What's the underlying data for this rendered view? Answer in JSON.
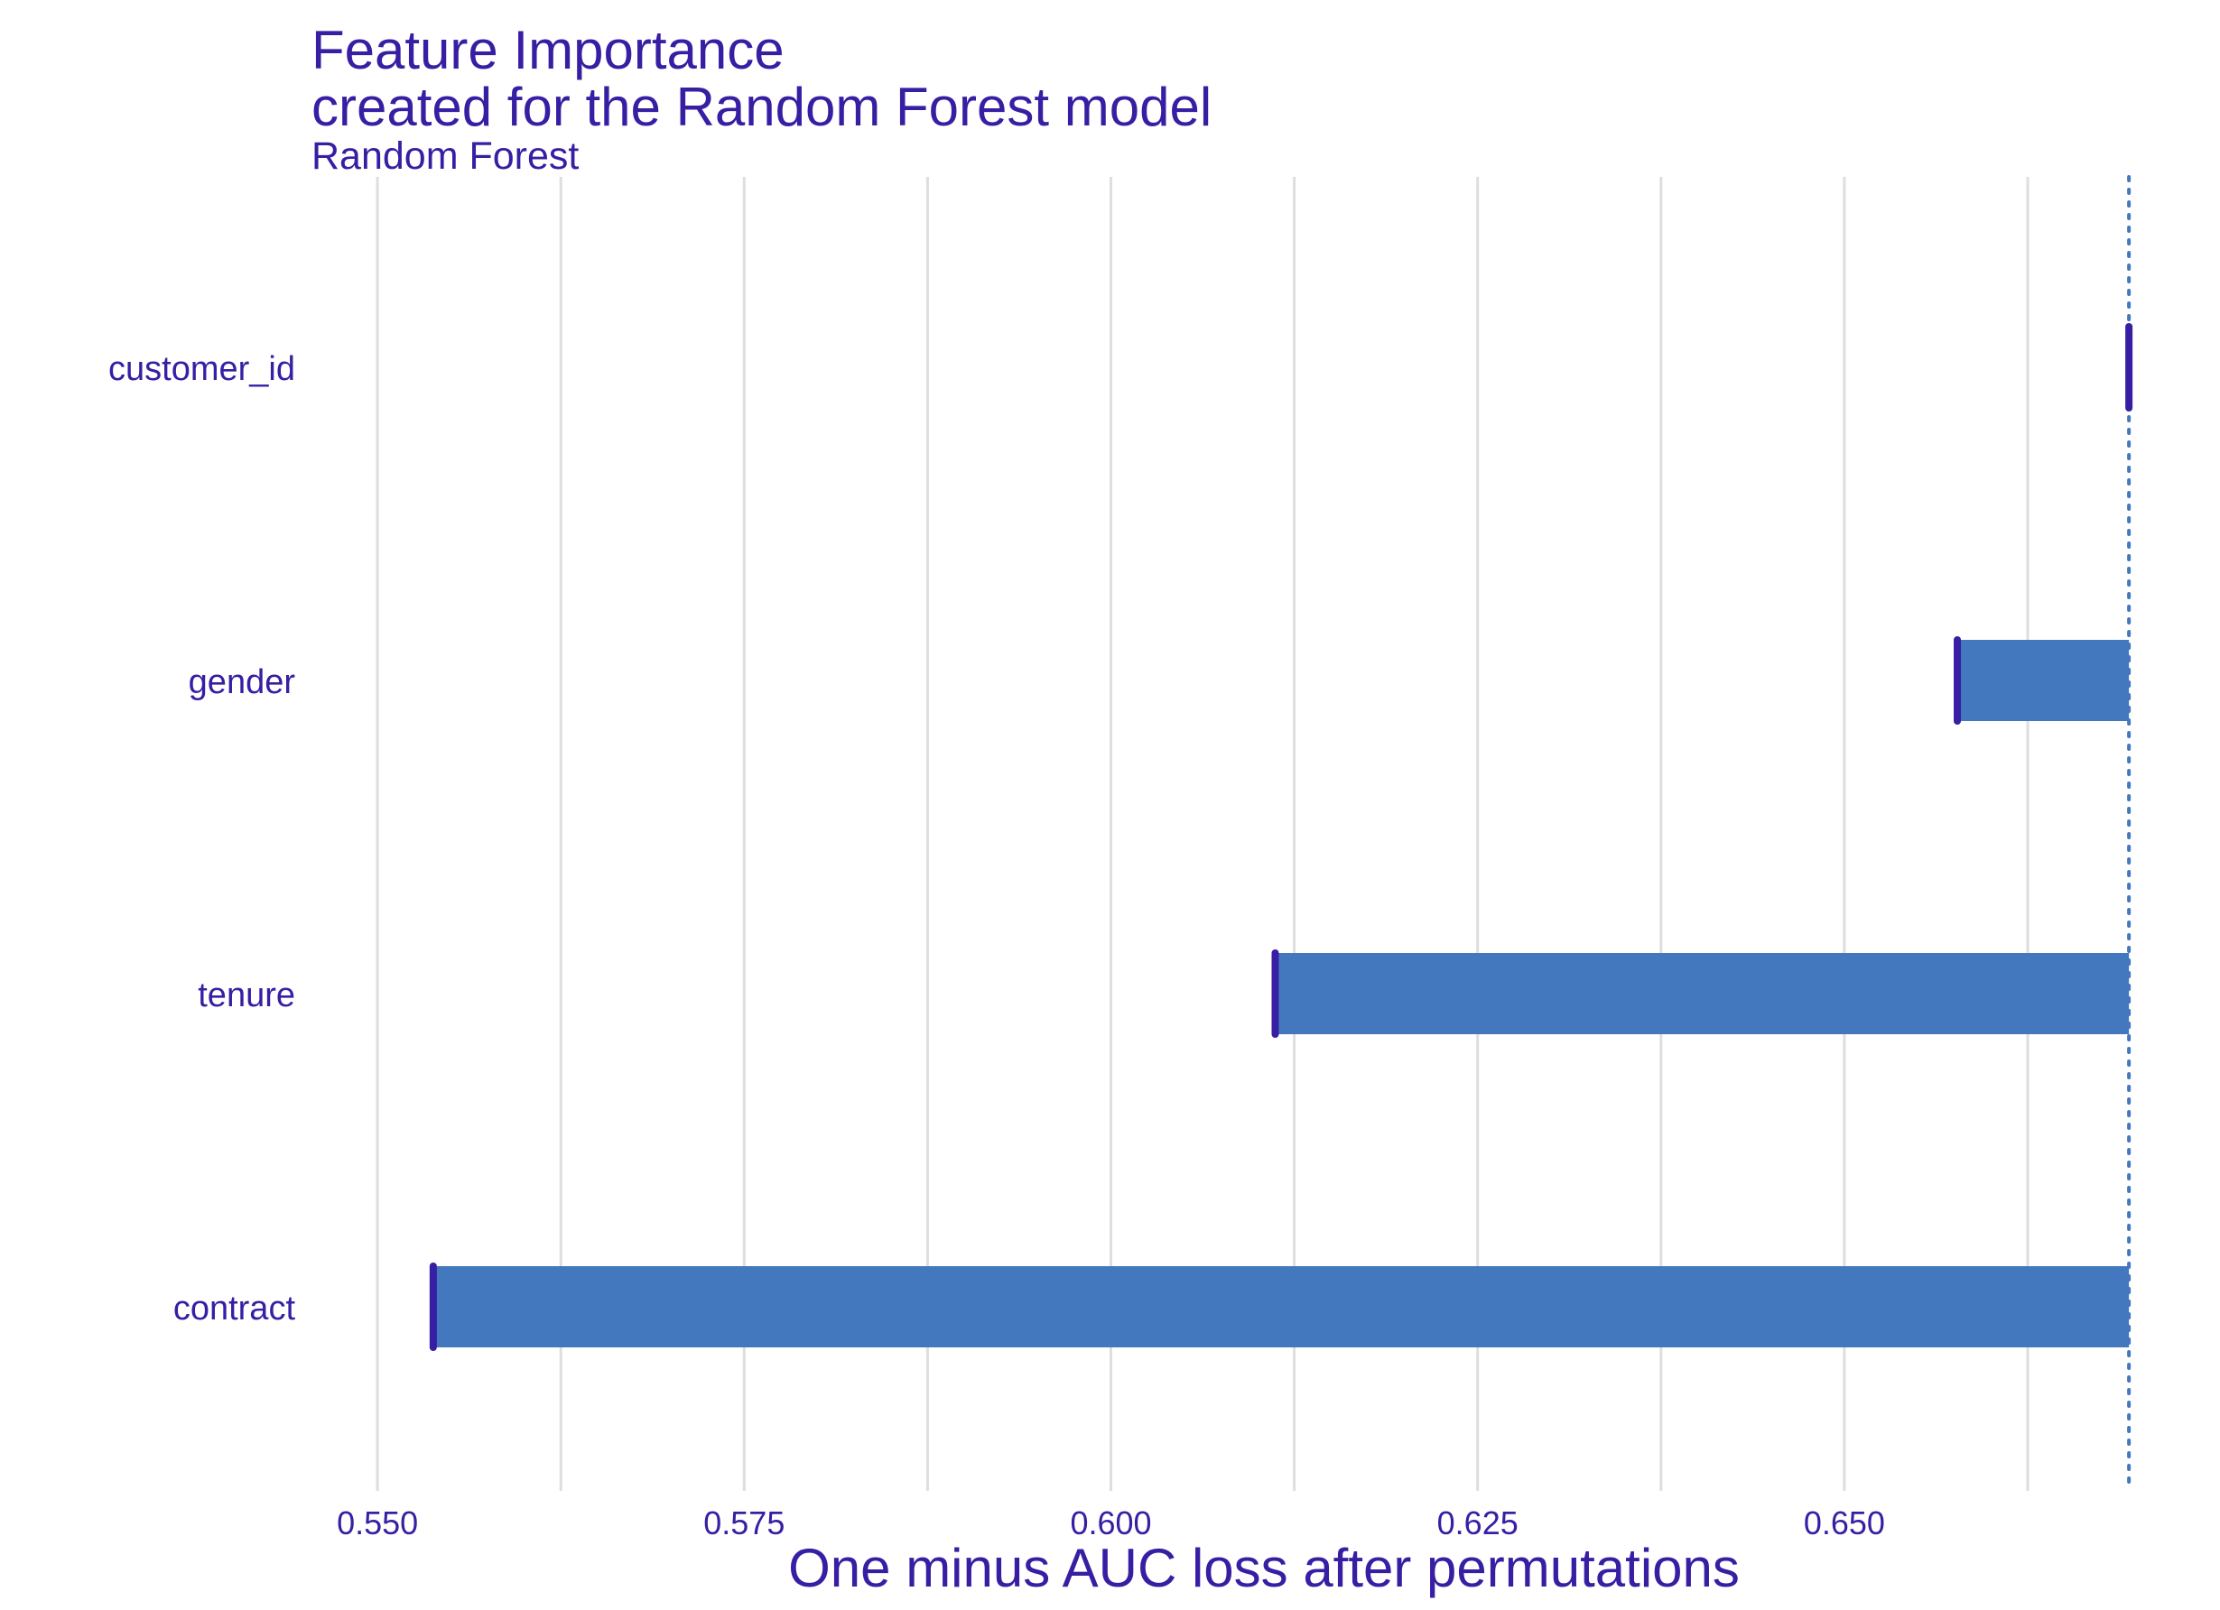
{
  "chart_data": {
    "type": "bar",
    "title": "Feature Importance",
    "title_line2": "created for the Random Forest model",
    "subtitle": "Random Forest",
    "xlabel": "One minus AUC loss after permutations",
    "ylabel": "",
    "xlim": [
      0.5455,
      0.6705
    ],
    "x_ticks": [
      0.55,
      0.575,
      0.6,
      0.625,
      0.65
    ],
    "x_tick_labels": [
      "0.550",
      "0.575",
      "0.600",
      "0.625",
      "0.650"
    ],
    "x_minor_gridlines": [
      0.5625,
      0.5875,
      0.6125,
      0.6375,
      0.6625
    ],
    "grid": true,
    "legend": "none",
    "baseline": 0.6694,
    "categories": [
      "customer_id",
      "gender",
      "tenure",
      "contract"
    ],
    "values": [
      0.6694,
      0.6577,
      0.6112,
      0.5538
    ],
    "colors": {
      "bar": "#4378bf",
      "marker": "#371ea3",
      "baseline": "#4378bf",
      "grid": "#dedede",
      "text": "#371ea3"
    }
  }
}
